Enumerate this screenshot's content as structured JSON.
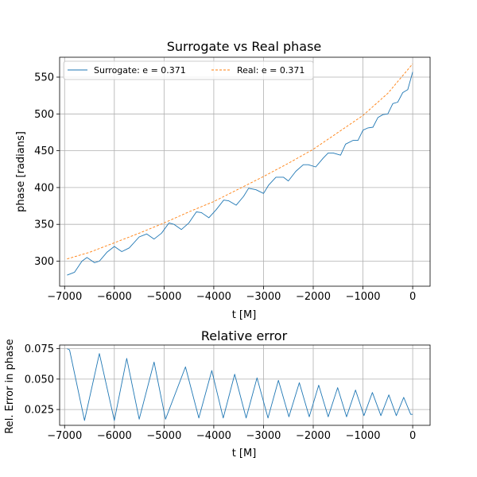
{
  "chart_data": [
    {
      "type": "line",
      "title": "Surrogate vs Real phase",
      "xlabel": "t [M]",
      "ylabel": "phase [radians]",
      "xlim": [
        -7100,
        350
      ],
      "ylim": [
        266,
        577
      ],
      "xticks": [
        -7000,
        -6000,
        -5000,
        -4000,
        -3000,
        -2000,
        -1000,
        0
      ],
      "xtick_labels": [
        "−7000",
        "−6000",
        "−5000",
        "−4000",
        "−3000",
        "−2000",
        "−1000",
        "0"
      ],
      "yticks": [
        300,
        350,
        400,
        450,
        500,
        550
      ],
      "ytick_labels": [
        "300",
        "350",
        "400",
        "450",
        "500",
        "550"
      ],
      "grid": true,
      "legend": {
        "placement": "top-left",
        "entries": [
          "Surrogate: e = 0.371",
          "Real: e = 0.371"
        ]
      },
      "series": [
        {
          "name": "Surrogate: e = 0.371",
          "color": "#1f77b4",
          "style": "solid",
          "x": [
            -6950,
            -6800,
            -6650,
            -6550,
            -6400,
            -6300,
            -6150,
            -6000,
            -5850,
            -5700,
            -5500,
            -5350,
            -5200,
            -5050,
            -4900,
            -4800,
            -4650,
            -4500,
            -4350,
            -4250,
            -4100,
            -3950,
            -3800,
            -3700,
            -3550,
            -3400,
            -3300,
            -3150,
            -3000,
            -2900,
            -2750,
            -2600,
            -2500,
            -2350,
            -2200,
            -2100,
            -1950,
            -1800,
            -1700,
            -1600,
            -1450,
            -1350,
            -1200,
            -1100,
            -1000,
            -900,
            -800,
            -700,
            -600,
            -500,
            -400,
            -300,
            -200,
            -100,
            0
          ],
          "y": [
            281,
            285,
            300,
            305,
            298,
            300,
            312,
            320,
            313,
            318,
            333,
            337,
            330,
            338,
            352,
            350,
            343,
            352,
            367,
            366,
            359,
            370,
            383,
            382,
            376,
            388,
            399,
            397,
            392,
            403,
            414,
            414,
            409,
            422,
            431,
            431,
            428,
            440,
            447,
            447,
            444,
            459,
            464,
            464,
            478,
            481,
            482,
            495,
            499,
            500,
            514,
            516,
            529,
            533,
            557
          ]
        },
        {
          "name": "Real: e = 0.371",
          "color": "#ff7f0e",
          "style": "dashed",
          "x": [
            -6950,
            -6500,
            -6000,
            -5500,
            -5000,
            -4500,
            -4000,
            -3500,
            -3000,
            -2500,
            -2000,
            -1500,
            -1000,
            -500,
            0
          ],
          "y": [
            303,
            312,
            325,
            338,
            352,
            367,
            381,
            398,
            415,
            433,
            452,
            475,
            498,
            528,
            568
          ]
        }
      ]
    },
    {
      "type": "line",
      "title": "Relative error",
      "xlabel": "t [M]",
      "ylabel": "Rel. Error in phase",
      "xlim": [
        -7100,
        350
      ],
      "ylim": [
        0.012,
        0.078
      ],
      "xticks": [
        -7000,
        -6000,
        -5000,
        -4000,
        -3000,
        -2000,
        -1000,
        0
      ],
      "xtick_labels": [
        "−7000",
        "−6000",
        "−5000",
        "−4000",
        "−3000",
        "−2000",
        "−1000",
        "0"
      ],
      "yticks": [
        0.025,
        0.05,
        0.075
      ],
      "ytick_labels": [
        "0.025",
        "0.050",
        "0.075"
      ],
      "grid": true,
      "series": [
        {
          "color": "#1f77b4",
          "style": "solid",
          "x": [
            -6950,
            -6900,
            -6600,
            -6300,
            -6000,
            -5750,
            -5500,
            -5200,
            -4970,
            -4570,
            -4300,
            -4040,
            -3810,
            -3580,
            -3350,
            -3130,
            -2910,
            -2700,
            -2490,
            -2280,
            -2080,
            -1890,
            -1700,
            -1510,
            -1330,
            -1150,
            -980,
            -810,
            -640,
            -480,
            -330,
            -180,
            -40,
            0
          ],
          "y": [
            0.075,
            0.074,
            0.016,
            0.071,
            0.016,
            0.067,
            0.017,
            0.064,
            0.017,
            0.06,
            0.018,
            0.057,
            0.018,
            0.054,
            0.018,
            0.051,
            0.018,
            0.049,
            0.019,
            0.047,
            0.019,
            0.045,
            0.019,
            0.043,
            0.019,
            0.041,
            0.02,
            0.039,
            0.02,
            0.037,
            0.02,
            0.035,
            0.021,
            0.021
          ]
        }
      ]
    }
  ]
}
